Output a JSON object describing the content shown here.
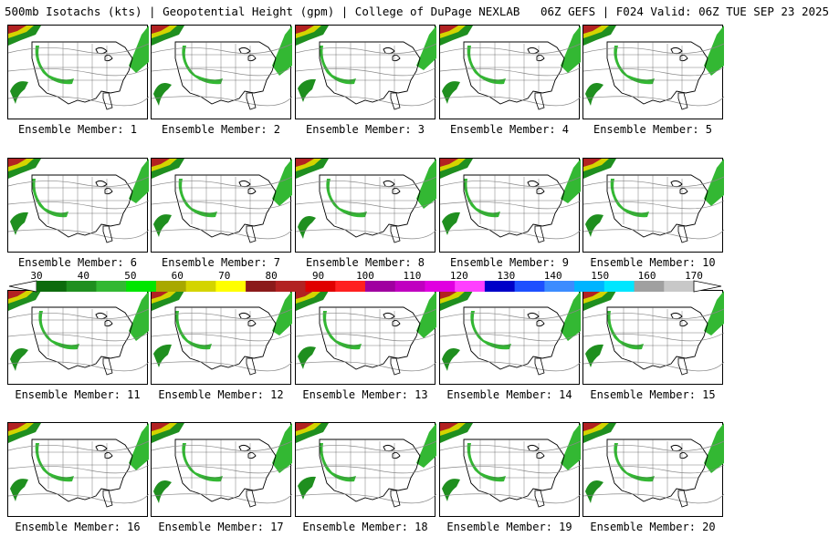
{
  "header": {
    "title": "500mb Isotachs (kts) | Geopotential Height (gpm) | College of DuPage NEXLAB   06Z GEFS | F024 Valid: 06Z TUE SEP 23 2025"
  },
  "panels": [
    {
      "label": "Ensemble Member: 1"
    },
    {
      "label": "Ensemble Member: 2"
    },
    {
      "label": "Ensemble Member: 3"
    },
    {
      "label": "Ensemble Member: 4"
    },
    {
      "label": "Ensemble Member: 5"
    },
    {
      "label": "Ensemble Member: 6"
    },
    {
      "label": "Ensemble Member: 7"
    },
    {
      "label": "Ensemble Member: 8"
    },
    {
      "label": "Ensemble Member: 9"
    },
    {
      "label": "Ensemble Member: 10"
    },
    {
      "label": "Ensemble Member: 11"
    },
    {
      "label": "Ensemble Member: 12"
    },
    {
      "label": "Ensemble Member: 13"
    },
    {
      "label": "Ensemble Member: 14"
    },
    {
      "label": "Ensemble Member: 15"
    },
    {
      "label": "Ensemble Member: 16"
    },
    {
      "label": "Ensemble Member: 17"
    },
    {
      "label": "Ensemble Member: 18"
    },
    {
      "label": "Ensemble Member: 19"
    },
    {
      "label": "Ensemble Member: 20"
    }
  ],
  "colorbar": {
    "ticks": [
      "30",
      "40",
      "50",
      "60",
      "70",
      "80",
      "90",
      "100",
      "110",
      "120",
      "130",
      "140",
      "150",
      "160",
      "170"
    ],
    "colors": [
      "#0d6b0d",
      "#1f8f1f",
      "#33b833",
      "#00e600",
      "#a8a800",
      "#d4d400",
      "#ffff00",
      "#8b1a1a",
      "#b22222",
      "#e00000",
      "#ff2020",
      "#a000a0",
      "#c000c0",
      "#e000e0",
      "#ff40ff",
      "#0000c8",
      "#1e50ff",
      "#3c8cff",
      "#00b4ff",
      "#00e6ff",
      "#a0a0a0",
      "#c8c8c8"
    ]
  }
}
